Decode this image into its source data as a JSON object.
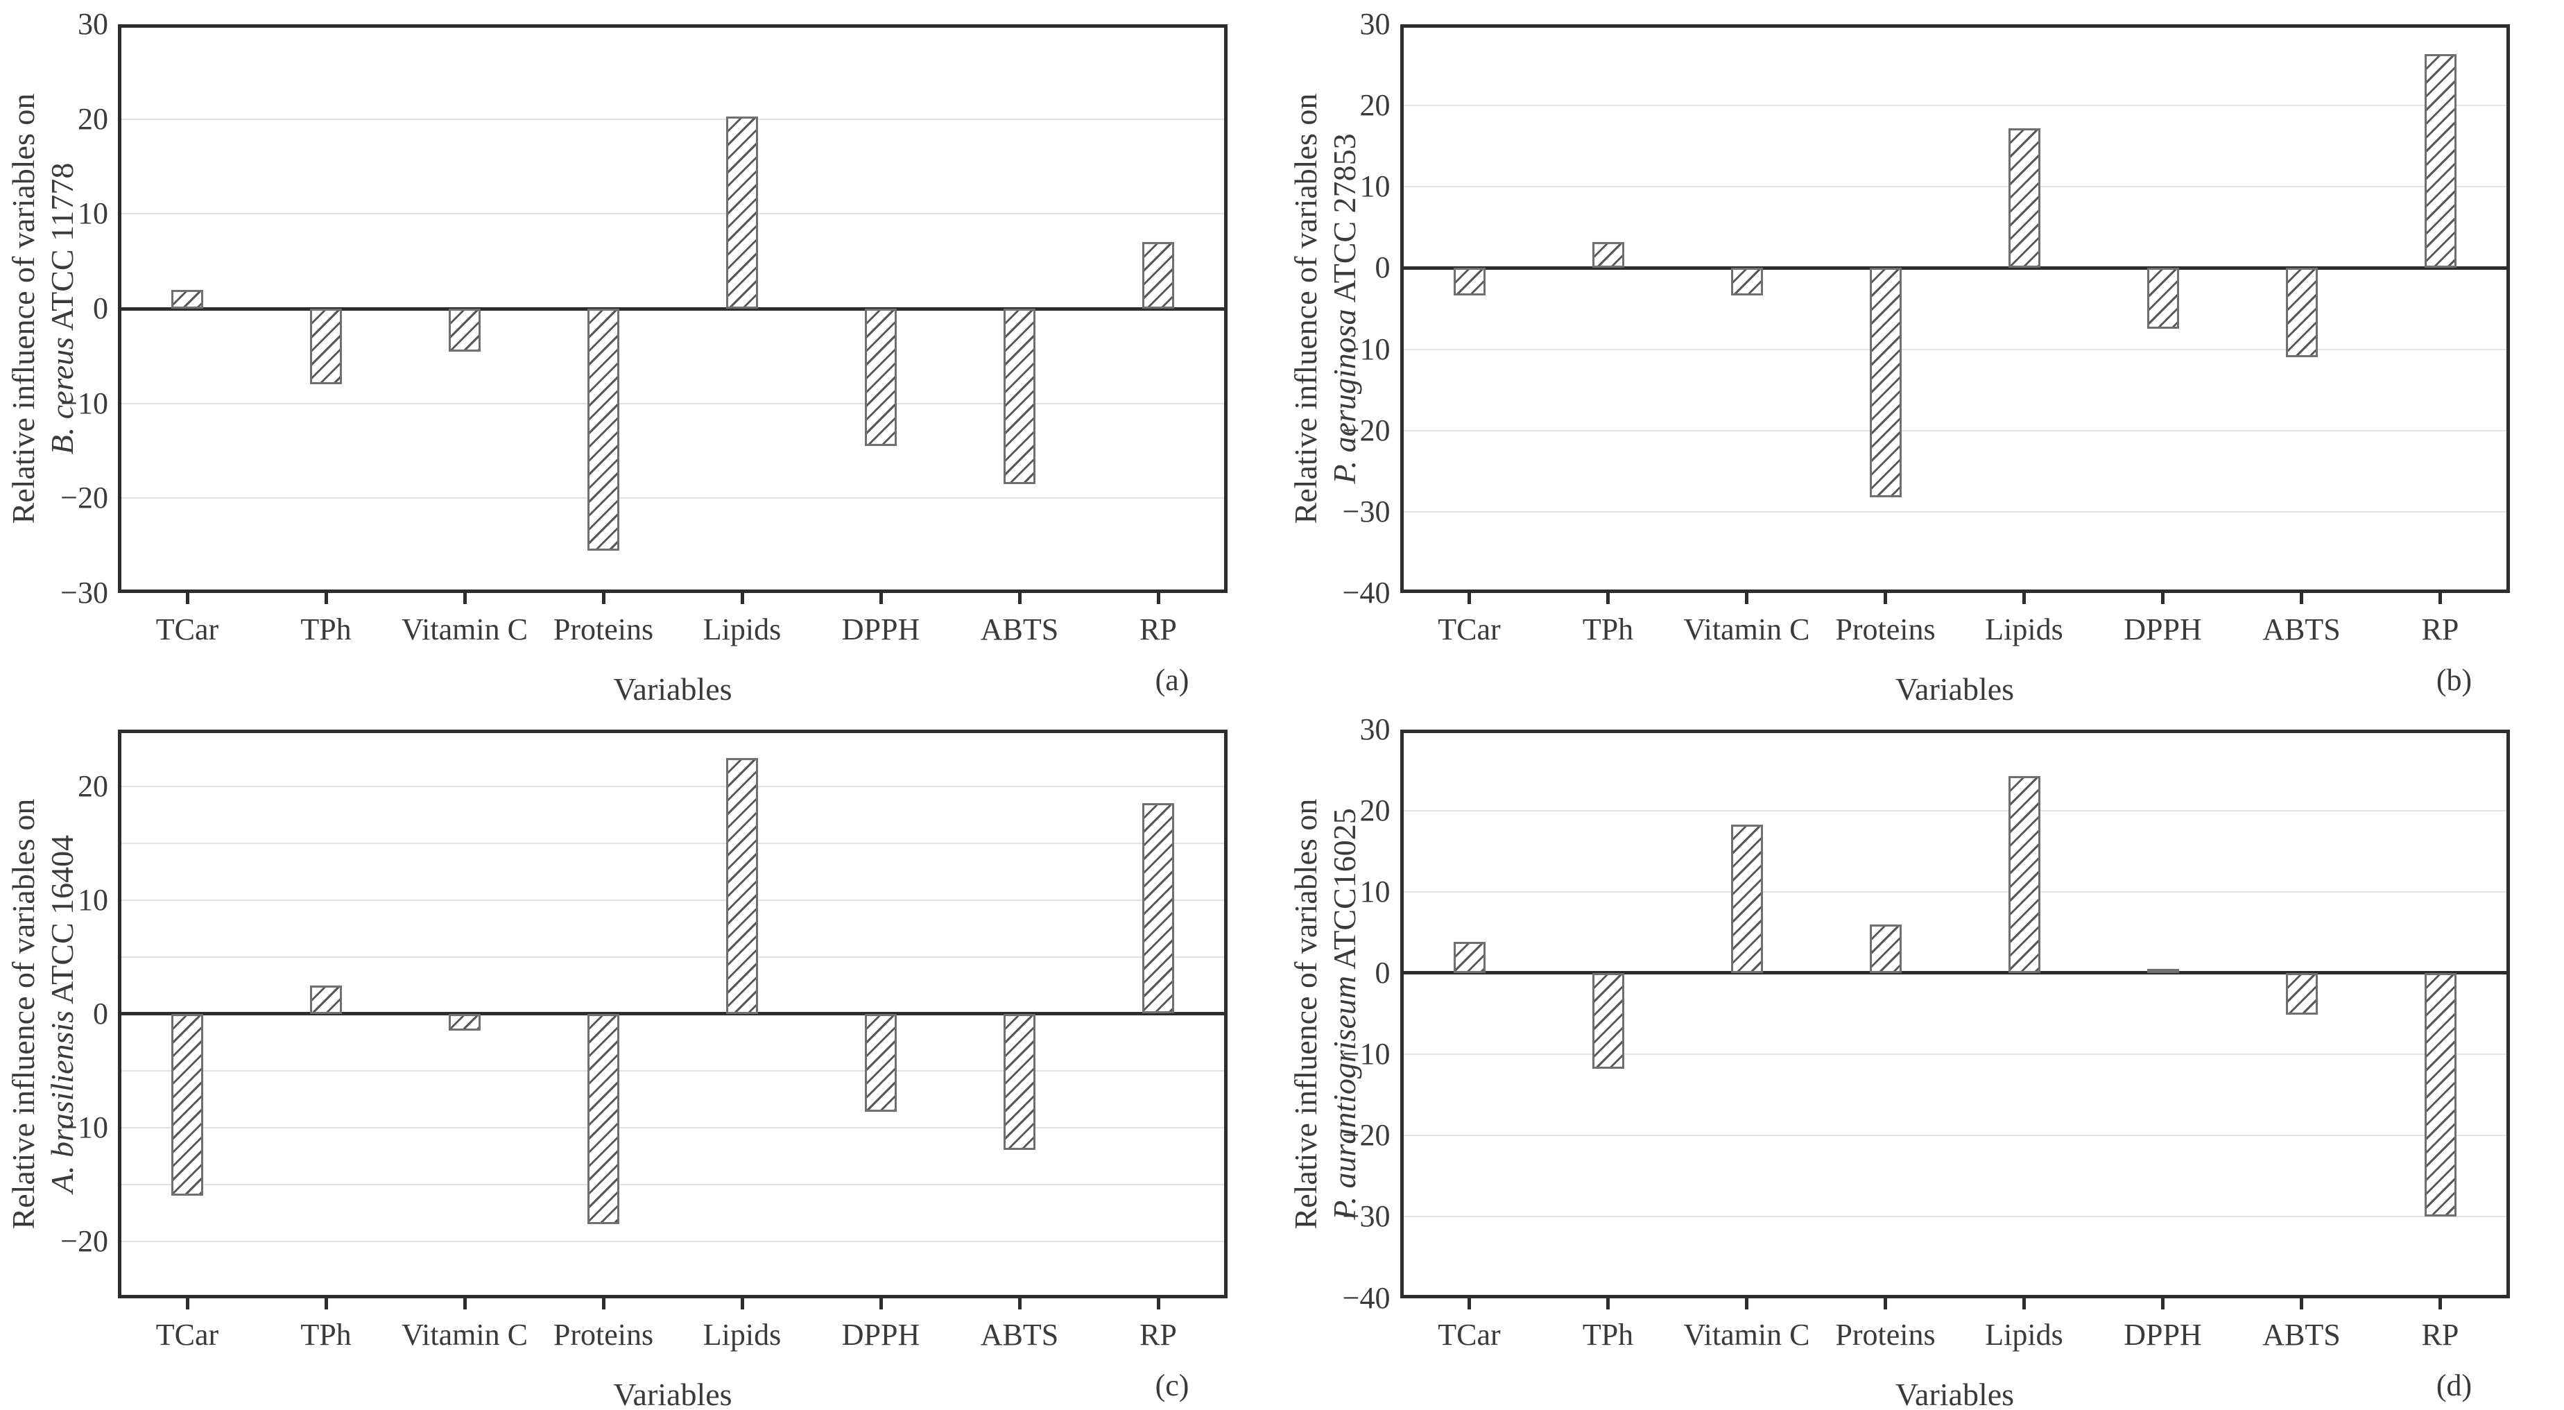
{
  "figure": {
    "background": "#ffffff",
    "layout": "2x2 grid of hatched bar charts",
    "x_axis_title": "Variables"
  },
  "colors": {
    "axis": "#2f2d2b",
    "gridline": "#e2e2e2",
    "bar_fill": "#ffffff",
    "bar_outline": "#6f6f6f",
    "hatch_stroke": "#575757",
    "text": "#3a3a3a"
  },
  "chart_data": [
    {
      "panel_letter": "(a)",
      "type": "bar",
      "ylabel_line1": "Relative influence of variables on",
      "species": "B. cereus",
      "strain": "ATCC 11778",
      "xlabel": "Variables",
      "categories": [
        "TCar",
        "TPh",
        "Vitamin C",
        "Proteins",
        "Lipids",
        "DPPH",
        "ABTS",
        "RP"
      ],
      "values": [
        2,
        -8,
        -4.5,
        -25.5,
        20.3,
        -14.5,
        -18.5,
        7
      ],
      "ylim": [
        -30,
        30
      ],
      "yticks": [
        30,
        20,
        10,
        0,
        -10,
        -20,
        -30
      ],
      "gridlines": [
        20,
        10,
        -10,
        -20
      ],
      "legend": "none",
      "bar_style": "white with diagonal hatch"
    },
    {
      "panel_letter": "(b)",
      "type": "bar",
      "ylabel_line1": "Relative influence of variables on",
      "species": "P. aeruginosa",
      "strain": "ATCC 27853",
      "xlabel": "Variables",
      "categories": [
        "TCar",
        "TPh",
        "Vitamin C",
        "Proteins",
        "Lipids",
        "DPPH",
        "ABTS",
        "RP"
      ],
      "values": [
        -3.4,
        3.2,
        -3.4,
        -28.2,
        17.2,
        -7.5,
        -11,
        26.3
      ],
      "ylim": [
        -40,
        30
      ],
      "yticks": [
        30,
        20,
        10,
        0,
        -10,
        -20,
        -30,
        -40
      ],
      "gridlines": [
        20,
        10,
        -10,
        -20,
        -30
      ],
      "legend": "none",
      "bar_style": "white with diagonal hatch"
    },
    {
      "panel_letter": "(c)",
      "type": "bar",
      "ylabel_line1": "Relative influence of variables on",
      "species": "A. brasiliensis",
      "strain": "ATCC 16404",
      "xlabel": "Variables",
      "categories": [
        "TCar",
        "TPh",
        "Vitamin C",
        "Proteins",
        "Lipids",
        "DPPH",
        "ABTS",
        "RP"
      ],
      "values": [
        -16,
        2.5,
        -1.5,
        -18.5,
        22.5,
        -8.6,
        -12,
        18.5
      ],
      "ylim": [
        -25,
        25
      ],
      "yticks": [
        20,
        10,
        0,
        -10,
        -20
      ],
      "gridlines": [
        20,
        15,
        10,
        5,
        -5,
        -10,
        -15,
        -20
      ],
      "legend": "none",
      "bar_style": "white with diagonal hatch"
    },
    {
      "panel_letter": "(d)",
      "type": "bar",
      "ylabel_line1": "Relative influence of variables on",
      "species": "P. aurantiogriseum",
      "strain": "ATCC16025",
      "xlabel": "Variables",
      "categories": [
        "TCar",
        "TPh",
        "Vitamin C",
        "Proteins",
        "Lipids",
        "DPPH",
        "ABTS",
        "RP"
      ],
      "values": [
        3.8,
        -11.8,
        18.3,
        6,
        24.2,
        0.5,
        -5.1,
        -30
      ],
      "ylim": [
        -40,
        30
      ],
      "yticks": [
        30,
        20,
        10,
        0,
        -10,
        -20,
        -30,
        -40
      ],
      "gridlines": [
        20,
        10,
        -10,
        -20,
        -30
      ],
      "legend": "none",
      "bar_style": "white with diagonal hatch"
    }
  ]
}
